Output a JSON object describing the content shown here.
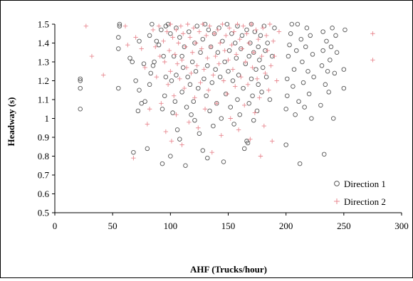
{
  "chart_data": {
    "type": "scatter",
    "title": "",
    "xlabel": "AHF (Trucks/hour)",
    "ylabel": "Headway (s)",
    "xlim": [
      0,
      300
    ],
    "ylim": [
      0.5,
      1.5
    ],
    "xticks": [
      "0",
      "50",
      "100",
      "150",
      "200",
      "250",
      "300"
    ],
    "yticks": [
      "0.5",
      "0.6",
      "0.7",
      "0.8",
      "0.9",
      "1",
      "1.1",
      "1.2",
      "1.3",
      "1.4",
      "1.5"
    ],
    "grid": false,
    "legend_position": "bottom-right",
    "series": [
      {
        "name": "Direction 1",
        "marker": "circle",
        "color": "#555555",
        "points": [
          [
            22,
            1.05
          ],
          [
            22,
            1.16
          ],
          [
            22,
            1.2
          ],
          [
            22,
            1.21
          ],
          [
            55,
            1.16
          ],
          [
            55,
            1.37
          ],
          [
            55,
            1.43
          ],
          [
            56,
            1.49
          ],
          [
            56,
            1.5
          ],
          [
            65,
            1.32
          ],
          [
            67,
            1.3
          ],
          [
            68,
            0.82
          ],
          [
            70,
            1.2
          ],
          [
            72,
            1.04
          ],
          [
            73,
            1.15
          ],
          [
            73,
            1.41
          ],
          [
            75,
            1.08
          ],
          [
            77,
            1.29
          ],
          [
            78,
            1.09
          ],
          [
            80,
            0.84
          ],
          [
            82,
            1.18
          ],
          [
            82,
            1.44
          ],
          [
            83,
            1.24
          ],
          [
            84,
            1.5
          ],
          [
            85,
            1.28
          ],
          [
            86,
            1.3
          ],
          [
            88,
            1.41
          ],
          [
            90,
            1.39
          ],
          [
            92,
            1.47
          ],
          [
            93,
            0.76
          ],
          [
            93,
            1.05
          ],
          [
            94,
            1.33
          ],
          [
            95,
            1.12
          ],
          [
            96,
            1.49
          ],
          [
            96,
            1.22
          ],
          [
            98,
            1.5
          ],
          [
            100,
            0.8
          ],
          [
            100,
            1.45
          ],
          [
            101,
            1.2
          ],
          [
            102,
            1.03
          ],
          [
            103,
            1.33
          ],
          [
            104,
            1.09
          ],
          [
            105,
            1.48
          ],
          [
            105,
            1.23
          ],
          [
            106,
            0.94
          ],
          [
            108,
            0.89
          ],
          [
            108,
            1.43
          ],
          [
            110,
            1.14
          ],
          [
            110,
            1.33
          ],
          [
            111,
            1.27
          ],
          [
            112,
            1.38
          ],
          [
            113,
            0.75
          ],
          [
            114,
            1.06
          ],
          [
            115,
            1.22
          ],
          [
            116,
            1.46
          ],
          [
            117,
            1.18
          ],
          [
            118,
            1.02
          ],
          [
            119,
            1.3
          ],
          [
            120,
            1.09
          ],
          [
            121,
            1.4
          ],
          [
            121,
            0.99
          ],
          [
            122,
            1.25
          ],
          [
            123,
            1.49
          ],
          [
            124,
            1.16
          ],
          [
            125,
            0.92
          ],
          [
            126,
            1.35
          ],
          [
            128,
            1.42
          ],
          [
            128,
            0.83
          ],
          [
            129,
            1.21
          ],
          [
            130,
            1.5
          ],
          [
            131,
            1.12
          ],
          [
            132,
            0.79
          ],
          [
            132,
            1.28
          ],
          [
            133,
            1.47
          ],
          [
            134,
            1.04
          ],
          [
            135,
            1.38
          ],
          [
            136,
            1.19
          ],
          [
            137,
            0.96
          ],
          [
            138,
            1.45
          ],
          [
            139,
            1.26
          ],
          [
            140,
            1.08
          ],
          [
            141,
            1.35
          ],
          [
            142,
            1.48
          ],
          [
            143,
            1.22
          ],
          [
            144,
            1.0
          ],
          [
            145,
            1.41
          ],
          [
            146,
            0.77
          ],
          [
            147,
            1.3
          ],
          [
            148,
            1.13
          ],
          [
            149,
            1.5
          ],
          [
            150,
            1.25
          ],
          [
            151,
            1.36
          ],
          [
            152,
            1.06
          ],
          [
            153,
            1.45
          ],
          [
            154,
            1.2
          ],
          [
            155,
            0.97
          ],
          [
            156,
            1.4
          ],
          [
            157,
            1.32
          ],
          [
            158,
            1.1
          ],
          [
            158,
            1.49
          ],
          [
            159,
            1.23
          ],
          [
            160,
            1.02
          ],
          [
            161,
            1.37
          ],
          [
            162,
            1.44
          ],
          [
            163,
            1.16
          ],
          [
            164,
            0.84
          ],
          [
            165,
            1.29
          ],
          [
            166,
            1.47
          ],
          [
            166,
            0.88
          ],
          [
            167,
            0.87
          ],
          [
            168,
            1.33
          ],
          [
            168,
            1.08
          ],
          [
            169,
            1.4
          ],
          [
            170,
            1.21
          ],
          [
            170,
            1.5
          ],
          [
            171,
            1.12
          ],
          [
            172,
            1.35
          ],
          [
            172,
            0.99
          ],
          [
            173,
            1.46
          ],
          [
            174,
            1.26
          ],
          [
            175,
            1.04
          ],
          [
            176,
            1.38
          ],
          [
            176,
            1.18
          ],
          [
            177,
            1.31
          ],
          [
            178,
            1.44
          ],
          [
            179,
            1.14
          ],
          [
            180,
            1.27
          ],
          [
            181,
            1.49
          ],
          [
            182,
            1.36
          ],
          [
            183,
            1.22
          ],
          [
            184,
            1.4
          ],
          [
            186,
            1.1
          ],
          [
            188,
            1.33
          ],
          [
            190,
            1.48
          ],
          [
            200,
            0.86
          ],
          [
            200,
            1.05
          ],
          [
            201,
            1.12
          ],
          [
            201,
            1.21
          ],
          [
            202,
            1.33
          ],
          [
            203,
            1.39
          ],
          [
            204,
            1.45
          ],
          [
            205,
            1.5
          ],
          [
            206,
            1.17
          ],
          [
            207,
            1.26
          ],
          [
            208,
            1.02
          ],
          [
            209,
            1.36
          ],
          [
            210,
            1.5
          ],
          [
            211,
            1.09
          ],
          [
            212,
            0.76
          ],
          [
            213,
            1.42
          ],
          [
            214,
            1.3
          ],
          [
            215,
            1.19
          ],
          [
            216,
            1.06
          ],
          [
            217,
            1.38
          ],
          [
            218,
            1.48
          ],
          [
            219,
            1.25
          ],
          [
            220,
            1.13
          ],
          [
            221,
            1.44
          ],
          [
            222,
            1.0
          ],
          [
            223,
            1.34
          ],
          [
            224,
            1.22
          ],
          [
            230,
            1.07
          ],
          [
            231,
            1.28
          ],
          [
            232,
            1.36
          ],
          [
            232,
            1.46
          ],
          [
            233,
            0.81
          ],
          [
            234,
            1.18
          ],
          [
            235,
            1.41
          ],
          [
            236,
            1.25
          ],
          [
            237,
            1.14
          ],
          [
            238,
            1.31
          ],
          [
            239,
            1.38
          ],
          [
            240,
            1.48
          ],
          [
            241,
            1.0
          ],
          [
            242,
            1.24
          ],
          [
            243,
            1.44
          ],
          [
            244,
            1.35
          ],
          [
            250,
            1.16
          ],
          [
            250,
            1.26
          ],
          [
            251,
            1.47
          ]
        ]
      },
      {
        "name": "Direction 2",
        "marker": "plus",
        "color": "#e8878f",
        "points": [
          [
            27,
            1.49
          ],
          [
            32,
            1.33
          ],
          [
            42,
            1.23
          ],
          [
            61,
            1.49
          ],
          [
            63,
            1.39
          ],
          [
            68,
            0.79
          ],
          [
            70,
            1.43
          ],
          [
            75,
            1.37
          ],
          [
            78,
            1.27
          ],
          [
            80,
            0.97
          ],
          [
            82,
            1.05
          ],
          [
            85,
            1.47
          ],
          [
            87,
            1.38
          ],
          [
            88,
            1.22
          ],
          [
            90,
            1.49
          ],
          [
            91,
            1.33
          ],
          [
            92,
            1.08
          ],
          [
            94,
            1.41
          ],
          [
            95,
            1.3
          ],
          [
            96,
            0.93
          ],
          [
            97,
            1.46
          ],
          [
            98,
            1.18
          ],
          [
            99,
            1.36
          ],
          [
            100,
            1.5
          ],
          [
            100,
            1.25
          ],
          [
            101,
            0.88
          ],
          [
            102,
            1.43
          ],
          [
            103,
            1.12
          ],
          [
            104,
            1.34
          ],
          [
            105,
            1.47
          ],
          [
            105,
            1.02
          ],
          [
            106,
            1.29
          ],
          [
            107,
            1.4
          ],
          [
            108,
            1.21
          ],
          [
            109,
            1.49
          ],
          [
            110,
            0.86
          ],
          [
            110,
            1.31
          ],
          [
            111,
            1.45
          ],
          [
            112,
            1.16
          ],
          [
            113,
            1.38
          ],
          [
            114,
            1.27
          ],
          [
            115,
            1.5
          ],
          [
            116,
            0.98
          ],
          [
            117,
            1.43
          ],
          [
            118,
            1.24
          ],
          [
            119,
            1.35
          ],
          [
            120,
            1.48
          ],
          [
            121,
            1.11
          ],
          [
            122,
            1.4
          ],
          [
            123,
            1.28
          ],
          [
            124,
            0.95
          ],
          [
            125,
            1.46
          ],
          [
            126,
            1.19
          ],
          [
            127,
            1.37
          ],
          [
            128,
            1.5
          ],
          [
            129,
            1.26
          ],
          [
            130,
            1.05
          ],
          [
            131,
            1.44
          ],
          [
            132,
            1.32
          ],
          [
            133,
            1.15
          ],
          [
            134,
            1.49
          ],
          [
            135,
            1.38
          ],
          [
            136,
            0.82
          ],
          [
            137,
            1.23
          ],
          [
            138,
            1.45
          ],
          [
            139,
            1.33
          ],
          [
            140,
            1.08
          ],
          [
            141,
            1.47
          ],
          [
            142,
            1.29
          ],
          [
            143,
            1.4
          ],
          [
            144,
            0.91
          ],
          [
            145,
            1.5
          ],
          [
            146,
            1.2
          ],
          [
            147,
            1.36
          ],
          [
            148,
            1.44
          ],
          [
            149,
            1.13
          ],
          [
            150,
            1.31
          ],
          [
            151,
            1.48
          ],
          [
            152,
            1.0
          ],
          [
            153,
            1.39
          ],
          [
            154,
            1.26
          ],
          [
            155,
            1.46
          ],
          [
            156,
            1.17
          ],
          [
            157,
            1.34
          ],
          [
            158,
            1.5
          ],
          [
            159,
            0.94
          ],
          [
            160,
            1.42
          ],
          [
            161,
            1.22
          ],
          [
            162,
            1.37
          ],
          [
            163,
            1.49
          ],
          [
            164,
            1.07
          ],
          [
            165,
            1.3
          ],
          [
            166,
            1.45
          ],
          [
            167,
            1.18
          ],
          [
            168,
            1.4
          ],
          [
            169,
            0.89
          ],
          [
            170,
            1.5
          ],
          [
            171,
            1.27
          ],
          [
            172,
            1.35
          ],
          [
            173,
            1.03
          ],
          [
            174,
            1.47
          ],
          [
            175,
            1.21
          ],
          [
            176,
            1.42
          ],
          [
            177,
            1.11
          ],
          [
            178,
            0.8
          ],
          [
            179,
            1.33
          ],
          [
            180,
            1.48
          ],
          [
            181,
            0.96
          ],
          [
            182,
            1.24
          ],
          [
            183,
            1.44
          ],
          [
            184,
            1.36
          ],
          [
            185,
            1.15
          ],
          [
            186,
            1.5
          ],
          [
            187,
            1.28
          ],
          [
            188,
            0.88
          ],
          [
            189,
            1.41
          ],
          [
            190,
            1.33
          ],
          [
            192,
            1.2
          ],
          [
            194,
            1.46
          ],
          [
            275,
            1.45
          ],
          [
            275,
            1.31
          ]
        ]
      }
    ]
  }
}
